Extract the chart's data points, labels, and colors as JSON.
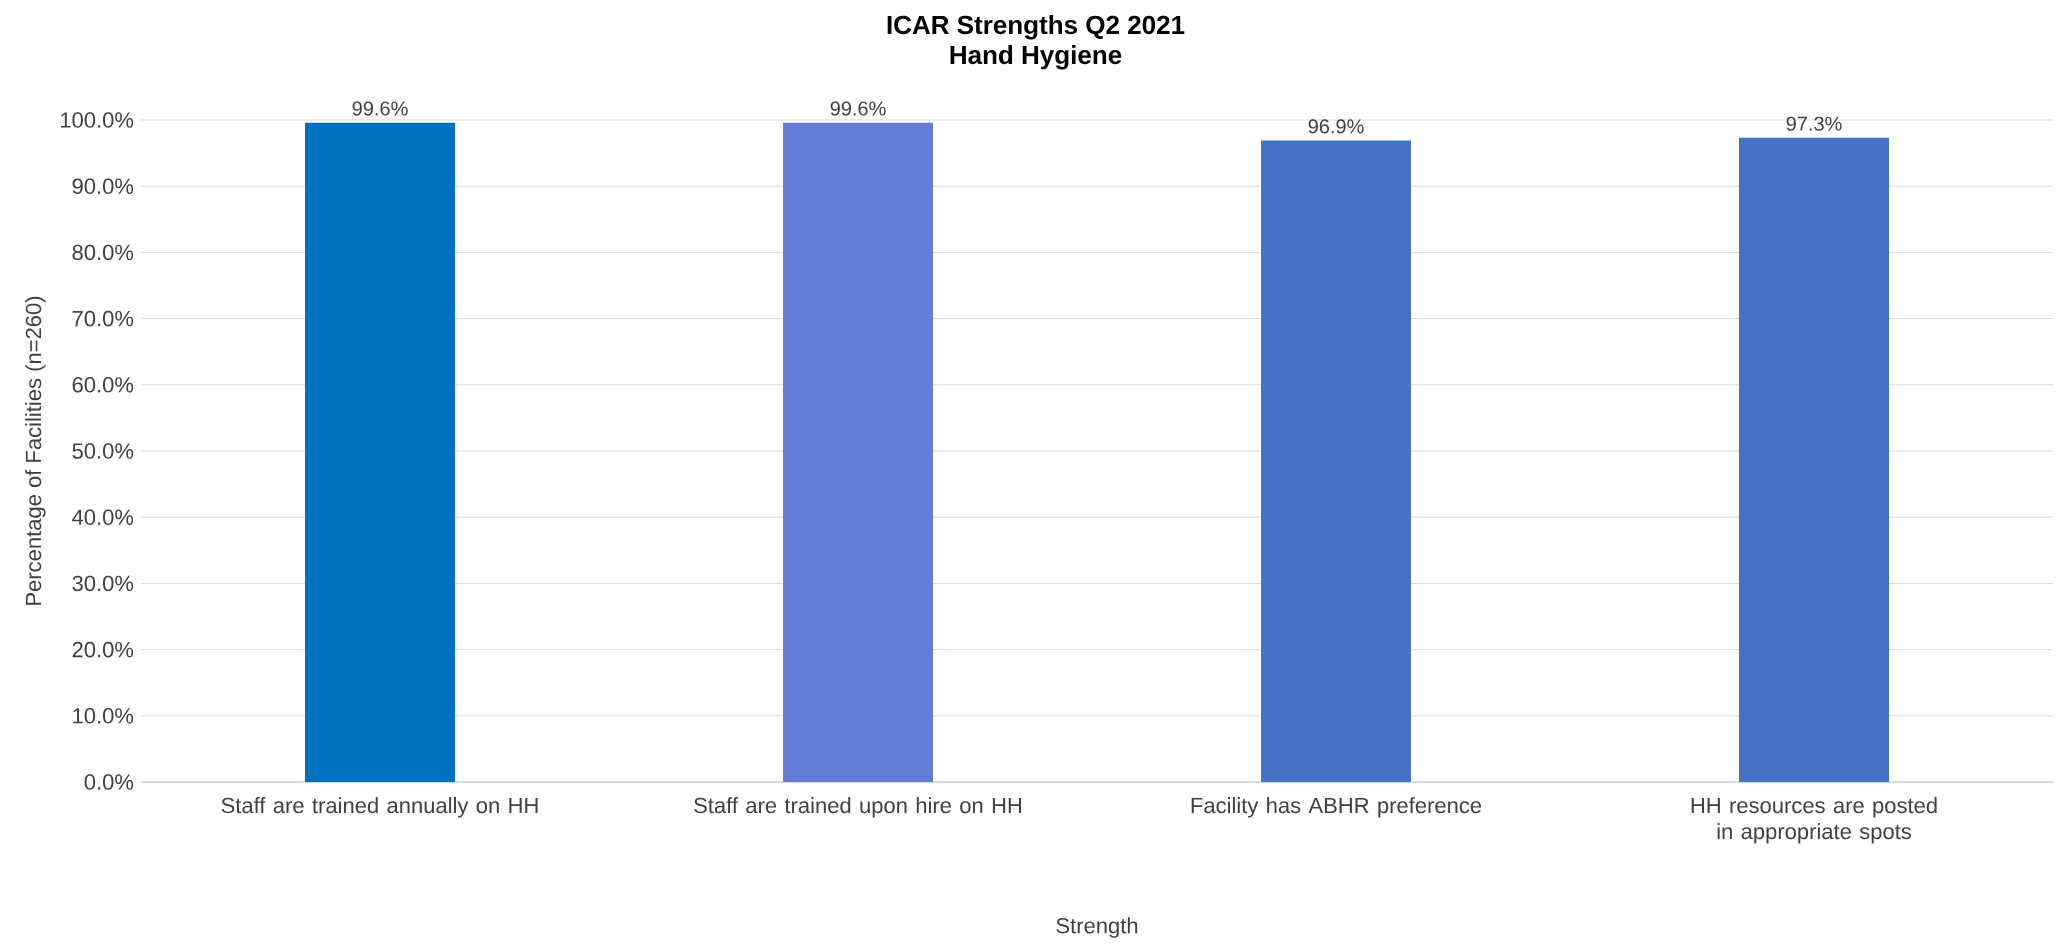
{
  "chart_data": {
    "type": "bar",
    "title": "ICAR Strengths Q2 2021",
    "subtitle": "Hand Hygiene",
    "xlabel": "Strength",
    "ylabel": "Percentage of Facilities (n=260)",
    "categories": [
      "Staff are trained annually on HH",
      "Staff are trained upon hire on HH",
      "Facility has ABHR preference",
      "HH resources are posted in appropriate spots"
    ],
    "values": [
      99.6,
      99.6,
      96.9,
      97.3
    ],
    "colors": [
      "#0070c0",
      "#637dd6",
      "#4472c4",
      "#4472c4"
    ],
    "value_labels": [
      "99.6%",
      "99.6%",
      "96.9%",
      "97.3%"
    ],
    "ylim": [
      0,
      100
    ],
    "yticks": [
      {
        "value": 0,
        "label": "0.0%"
      },
      {
        "value": 10,
        "label": "10.0%"
      },
      {
        "value": 20,
        "label": "20.0%"
      },
      {
        "value": 30,
        "label": "30.0%"
      },
      {
        "value": 40,
        "label": "40.0%"
      },
      {
        "value": 50,
        "label": "50.0%"
      },
      {
        "value": 60,
        "label": "60.0%"
      },
      {
        "value": 70,
        "label": "70.0%"
      },
      {
        "value": 80,
        "label": "80.0%"
      },
      {
        "value": 90,
        "label": "90.0%"
      },
      {
        "value": 100,
        "label": "100.0%"
      }
    ],
    "grid": "y"
  }
}
